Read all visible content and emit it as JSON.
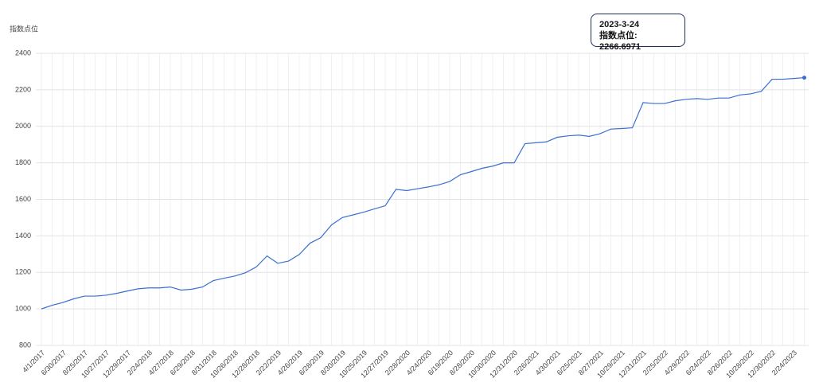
{
  "chart_data": {
    "type": "line",
    "y_axis_label": "指数点位",
    "categories": [
      "4/1/2017",
      null,
      "6/30/2017",
      null,
      "8/25/2017",
      null,
      "10/27/2017",
      null,
      "12/29/2017",
      null,
      "2/24/2018",
      null,
      "4/27/2018",
      null,
      "6/29/2018",
      null,
      "8/31/2018",
      null,
      "10/26/2018",
      null,
      "12/28/2018",
      null,
      "2/22/2019",
      null,
      "4/26/2019",
      null,
      "6/28/2019",
      null,
      "8/30/2019",
      null,
      "10/25/2019",
      null,
      "12/27/2019",
      null,
      "2/28/2020",
      null,
      "4/24/2020",
      null,
      "6/19/2020",
      null,
      "8/28/2020",
      null,
      "10/30/2020",
      null,
      "12/31/2020",
      null,
      "2/26/2021",
      null,
      "4/30/2021",
      null,
      "6/25/2021",
      null,
      "8/27/2021",
      null,
      "10/29/2021",
      null,
      "12/31/2021",
      null,
      "2/25/2022",
      null,
      "4/29/2022",
      null,
      "6/24/2022",
      null,
      "8/26/2022",
      null,
      "10/28/2022",
      null,
      "12/30/2022",
      null,
      "2/24/2023",
      null
    ],
    "values": [
      1000,
      1020,
      1035,
      1055,
      1070,
      1070,
      1075,
      1085,
      1098,
      1110,
      1115,
      1115,
      1120,
      1103,
      1108,
      1120,
      1155,
      1168,
      1180,
      1198,
      1230,
      1290,
      1250,
      1262,
      1298,
      1360,
      1390,
      1460,
      1500,
      1515,
      1530,
      1548,
      1565,
      1655,
      1648,
      1658,
      1668,
      1680,
      1698,
      1735,
      1752,
      1770,
      1782,
      1800,
      1800,
      1905,
      1910,
      1915,
      1940,
      1948,
      1952,
      1945,
      1960,
      1985,
      1988,
      1992,
      2130,
      2125,
      2125,
      2140,
      2148,
      2152,
      2148,
      2155,
      2155,
      2172,
      2178,
      2192,
      2258,
      2258,
      2262,
      2266.6971
    ],
    "color": "#3a6fd0",
    "ylim": [
      800,
      2400
    ],
    "yticks": [
      800,
      1000,
      1200,
      1400,
      1600,
      1800,
      2000,
      2200,
      2400
    ],
    "grid": true,
    "tooltip": {
      "date": "2023-3-24",
      "text": "指数点位: 2266.6971"
    }
  }
}
